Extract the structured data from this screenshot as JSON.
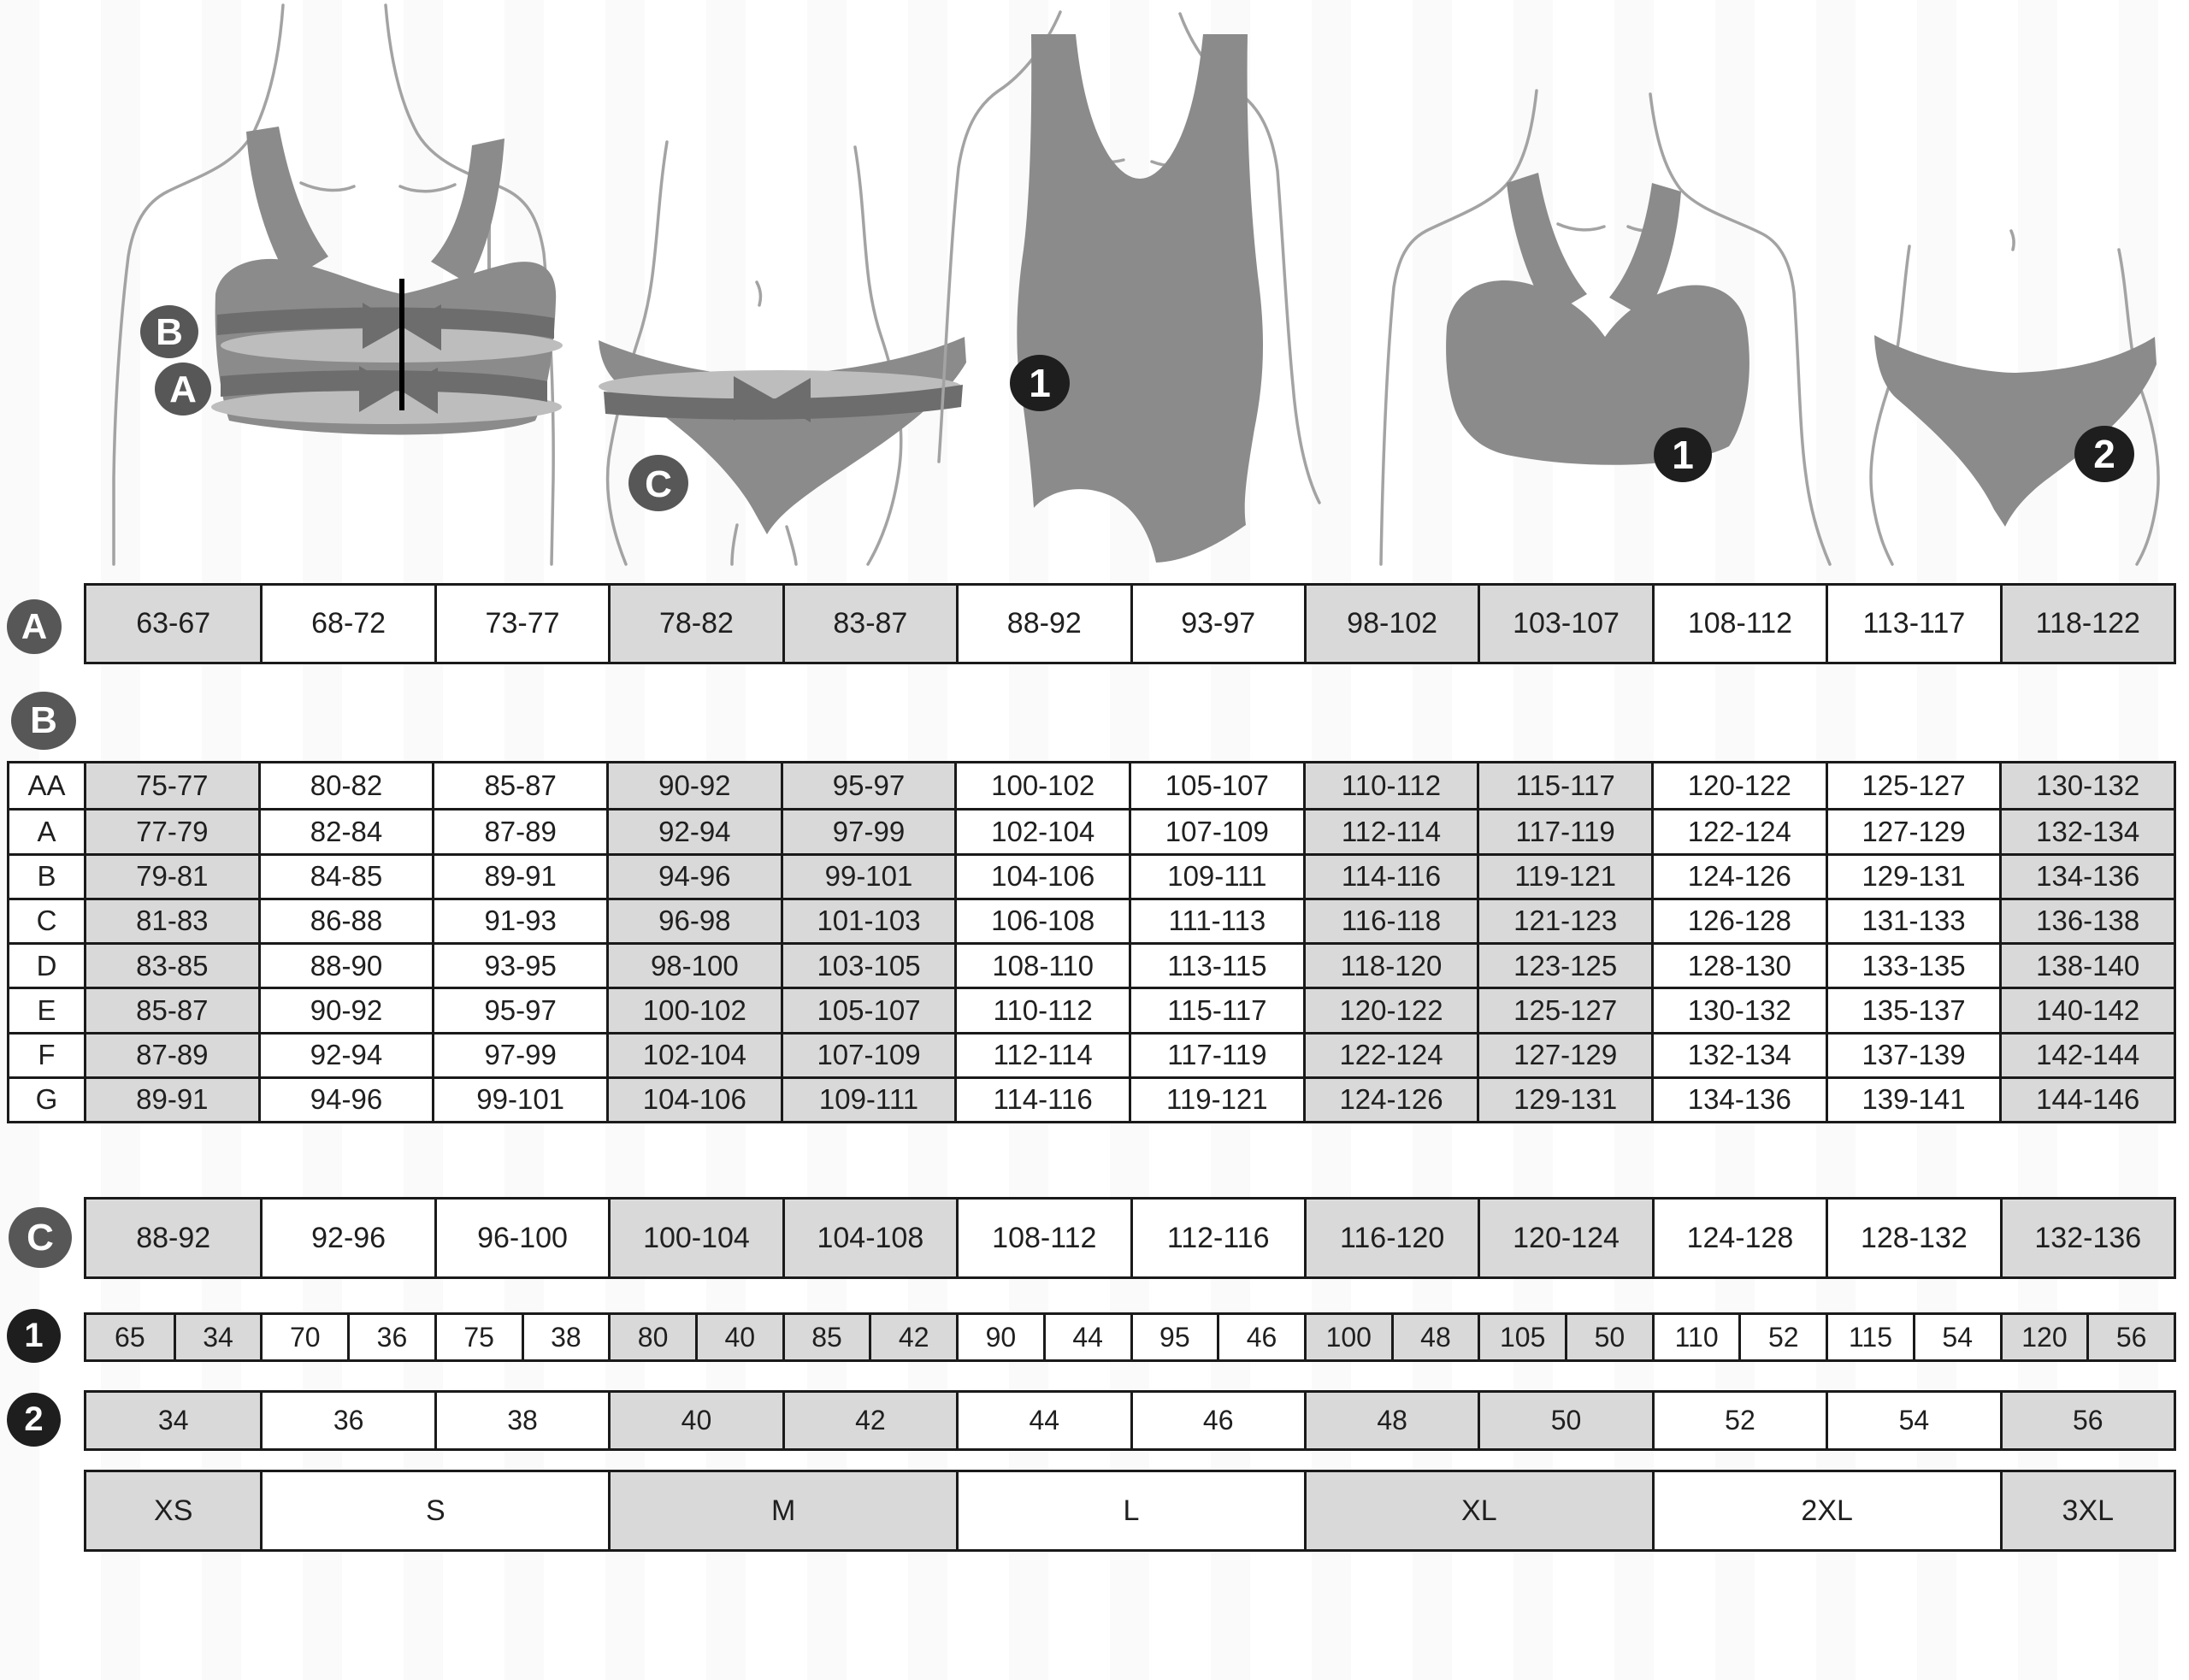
{
  "figures": {
    "bra_measure": {
      "badge_b": "B",
      "badge_a": "A"
    },
    "panty_measure": {
      "badge_c": "C"
    },
    "swimsuit": {
      "badge": "1"
    },
    "bra_product": {
      "badge": "1"
    },
    "panty_product": {
      "badge": "2"
    }
  },
  "row_a": {
    "label": "A",
    "values": [
      "63-67",
      "68-72",
      "73-77",
      "78-82",
      "83-87",
      "88-92",
      "93-97",
      "98-102",
      "103-107",
      "108-112",
      "113-117",
      "118-122"
    ]
  },
  "cup_table": {
    "label": "B",
    "rows": [
      {
        "cup": "AA",
        "values": [
          "75-77",
          "80-82",
          "85-87",
          "90-92",
          "95-97",
          "100-102",
          "105-107",
          "110-112",
          "115-117",
          "120-122",
          "125-127",
          "130-132"
        ]
      },
      {
        "cup": "A",
        "values": [
          "77-79",
          "82-84",
          "87-89",
          "92-94",
          "97-99",
          "102-104",
          "107-109",
          "112-114",
          "117-119",
          "122-124",
          "127-129",
          "132-134"
        ]
      },
      {
        "cup": "B",
        "values": [
          "79-81",
          "84-85",
          "89-91",
          "94-96",
          "99-101",
          "104-106",
          "109-111",
          "114-116",
          "119-121",
          "124-126",
          "129-131",
          "134-136"
        ]
      },
      {
        "cup": "C",
        "values": [
          "81-83",
          "86-88",
          "91-93",
          "96-98",
          "101-103",
          "106-108",
          "111-113",
          "116-118",
          "121-123",
          "126-128",
          "131-133",
          "136-138"
        ]
      },
      {
        "cup": "D",
        "values": [
          "83-85",
          "88-90",
          "93-95",
          "98-100",
          "103-105",
          "108-110",
          "113-115",
          "118-120",
          "123-125",
          "128-130",
          "133-135",
          "138-140"
        ]
      },
      {
        "cup": "E",
        "values": [
          "85-87",
          "90-92",
          "95-97",
          "100-102",
          "105-107",
          "110-112",
          "115-117",
          "120-122",
          "125-127",
          "130-132",
          "135-137",
          "140-142"
        ]
      },
      {
        "cup": "F",
        "values": [
          "87-89",
          "92-94",
          "97-99",
          "102-104",
          "107-109",
          "112-114",
          "117-119",
          "122-124",
          "127-129",
          "132-134",
          "137-139",
          "142-144"
        ]
      },
      {
        "cup": "G",
        "values": [
          "89-91",
          "94-96",
          "99-101",
          "104-106",
          "109-111",
          "114-116",
          "119-121",
          "124-126",
          "129-131",
          "134-136",
          "139-141",
          "144-146"
        ]
      }
    ]
  },
  "row_c": {
    "label": "C",
    "values": [
      "88-92",
      "92-96",
      "96-100",
      "100-104",
      "104-108",
      "108-112",
      "112-116",
      "116-120",
      "120-124",
      "124-128",
      "128-132",
      "132-136"
    ]
  },
  "row_1": {
    "label": "1",
    "pairs": [
      [
        "65",
        "34"
      ],
      [
        "70",
        "36"
      ],
      [
        "75",
        "38"
      ],
      [
        "80",
        "40"
      ],
      [
        "85",
        "42"
      ],
      [
        "90",
        "44"
      ],
      [
        "95",
        "46"
      ],
      [
        "100",
        "48"
      ],
      [
        "105",
        "50"
      ],
      [
        "110",
        "52"
      ],
      [
        "115",
        "54"
      ],
      [
        "120",
        "56"
      ]
    ]
  },
  "row_2": {
    "label": "2",
    "values": [
      "34",
      "36",
      "38",
      "40",
      "42",
      "44",
      "46",
      "48",
      "50",
      "52",
      "54",
      "56"
    ]
  },
  "sizes_row": {
    "groups": [
      {
        "label": "XS",
        "span": 1
      },
      {
        "label": "S",
        "span": 2
      },
      {
        "label": "M",
        "span": 2
      },
      {
        "label": "L",
        "span": 2
      },
      {
        "label": "XL",
        "span": 2
      },
      {
        "label": "2XL",
        "span": 2
      },
      {
        "label": "3XL",
        "span": 1
      }
    ]
  },
  "colors": {
    "shaded_cell": "#d9d9d9",
    "white_cell": "#ffffff",
    "border": "#1a1a1a",
    "figure_fill": "#8b8b8b",
    "band_dark": "#6d6d6d",
    "band_light": "#bdbdbd",
    "outline": "#a3a3a3",
    "letter_badge": "#575757",
    "number_badge": "#1e1e1e"
  }
}
